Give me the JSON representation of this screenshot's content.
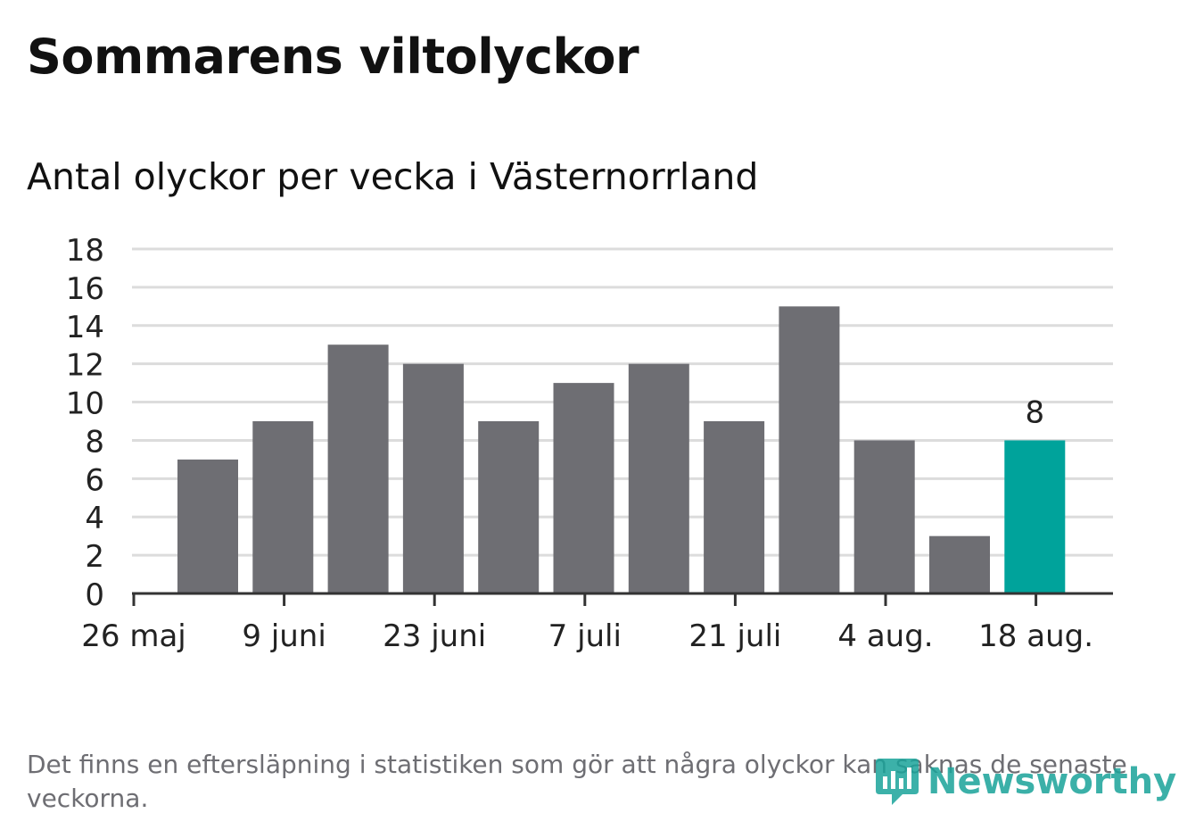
{
  "title": "Sommarens viltolyckor",
  "subtitle": "Antal olyckor per vecka i Västernorrland",
  "note": "Det finns en eftersläpning i statistiken som gör att några olyckor kan saknas de senaste veckorna.",
  "brand": {
    "name": "Newsworthy",
    "icon": "newsworthy-logo-icon",
    "color": "#1aa39a"
  },
  "colors": {
    "bar": "#6e6e73",
    "highlight": "#00a39b",
    "grid": "#dcdcdc",
    "axis": "#333333"
  },
  "chart_data": {
    "type": "bar",
    "x_ticks": [
      "26 maj",
      "9 juni",
      "23 juni",
      "7 juli",
      "21 juli",
      "4 aug.",
      "18 aug."
    ],
    "weeks_start": "26 maj",
    "values": [
      7,
      9,
      13,
      12,
      9,
      11,
      12,
      9,
      15,
      8,
      3,
      8
    ],
    "highlight_index": 11,
    "data_labels": [
      {
        "index": 11,
        "text": "8"
      }
    ],
    "y_ticks": [
      "0",
      "2",
      "4",
      "6",
      "8",
      "10",
      "12",
      "14",
      "16",
      "18"
    ],
    "ylim": [
      0,
      18
    ],
    "xlabel": "",
    "ylabel": "",
    "grid": true
  }
}
